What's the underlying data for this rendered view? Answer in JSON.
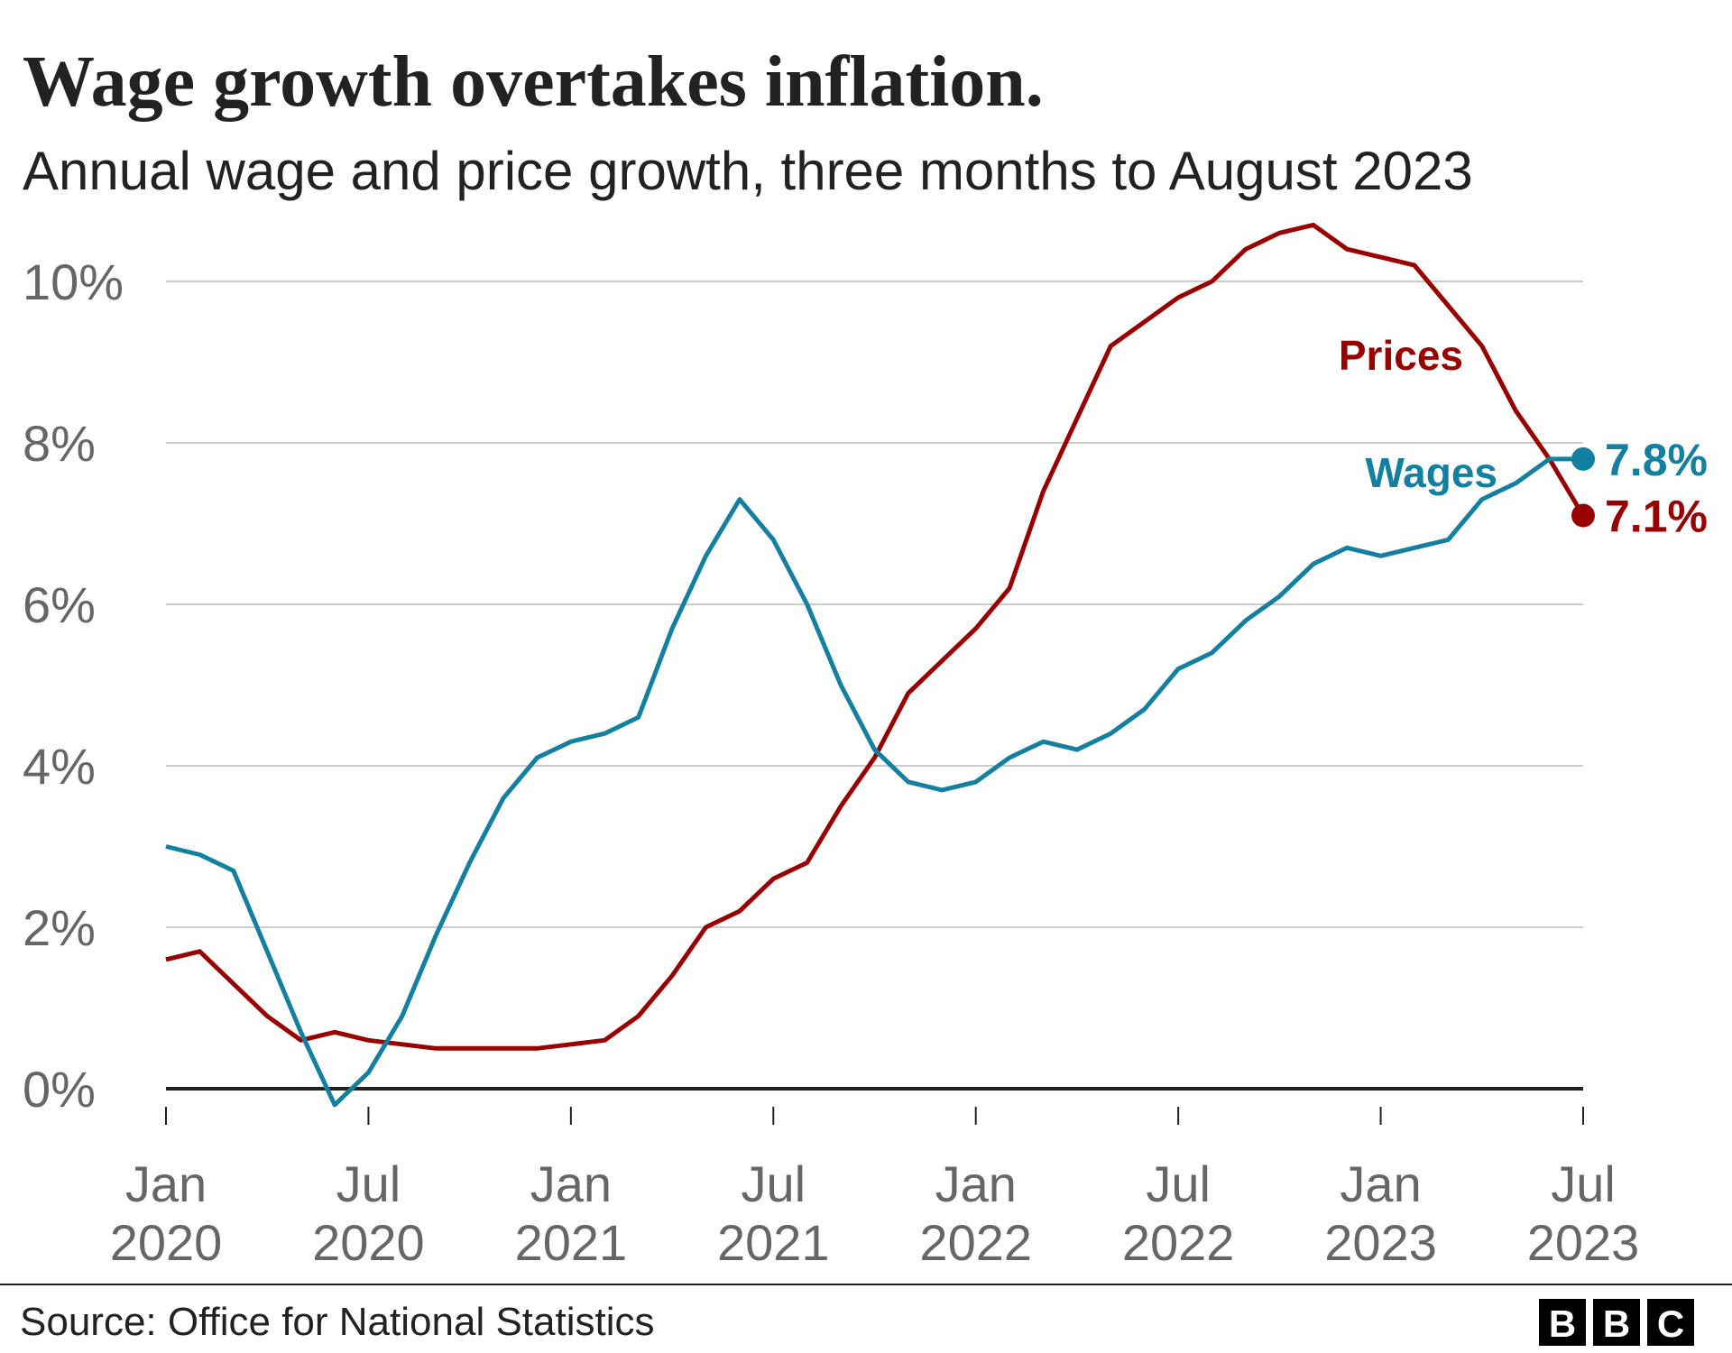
{
  "chart_data": {
    "type": "line",
    "title": "Wage growth overtakes inflation.",
    "subtitle": "Annual wage and price growth, three months to August 2023",
    "x": [
      "2020-01",
      "2020-02",
      "2020-03",
      "2020-04",
      "2020-05",
      "2020-06",
      "2020-07",
      "2020-08",
      "2020-09",
      "2020-10",
      "2020-11",
      "2020-12",
      "2021-01",
      "2021-02",
      "2021-03",
      "2021-04",
      "2021-05",
      "2021-06",
      "2021-07",
      "2021-08",
      "2021-09",
      "2021-10",
      "2021-11",
      "2021-12",
      "2022-01",
      "2022-02",
      "2022-03",
      "2022-04",
      "2022-05",
      "2022-06",
      "2022-07",
      "2022-08",
      "2022-09",
      "2022-10",
      "2022-11",
      "2022-12",
      "2023-01",
      "2023-02",
      "2023-03",
      "2023-04",
      "2023-05",
      "2023-06",
      "2023-07"
    ],
    "series": [
      {
        "name": "Prices",
        "color": "#990000",
        "values": [
          1.6,
          1.7,
          1.3,
          0.9,
          0.6,
          0.7,
          0.6,
          0.55,
          0.5,
          0.5,
          0.5,
          0.5,
          0.55,
          0.6,
          0.9,
          1.4,
          2.0,
          2.2,
          2.6,
          2.8,
          3.5,
          4.1,
          4.9,
          5.3,
          5.7,
          6.2,
          7.4,
          8.3,
          9.2,
          9.5,
          9.8,
          10.0,
          10.4,
          10.6,
          10.7,
          10.4,
          10.3,
          10.2,
          9.7,
          9.2,
          8.4,
          7.8,
          7.1
        ],
        "value_labels": [
          null,
          null,
          null,
          null,
          null,
          null,
          null,
          null,
          null,
          null,
          null,
          null,
          null,
          null,
          null,
          null,
          null,
          null,
          null,
          null,
          null,
          null,
          null,
          null,
          null,
          null,
          null,
          null,
          null,
          null,
          null,
          null,
          null,
          null,
          null,
          null,
          null,
          null,
          null,
          null,
          null,
          null,
          "7.1%"
        ]
      },
      {
        "name": "Wages",
        "color": "#1380A1",
        "values": [
          3.0,
          2.9,
          2.7,
          1.7,
          0.7,
          -0.2,
          0.2,
          0.9,
          1.9,
          2.8,
          3.6,
          4.1,
          4.3,
          4.4,
          4.6,
          5.7,
          6.6,
          7.3,
          6.8,
          6.0,
          5.0,
          4.2,
          3.8,
          3.7,
          3.8,
          4.1,
          4.3,
          4.2,
          4.4,
          4.7,
          5.2,
          5.4,
          5.8,
          6.1,
          6.5,
          6.7,
          6.6,
          6.7,
          6.8,
          7.3,
          7.5,
          7.8,
          7.8
        ],
        "value_labels": [
          null,
          null,
          null,
          null,
          null,
          null,
          null,
          null,
          null,
          null,
          null,
          null,
          null,
          null,
          null,
          null,
          null,
          null,
          null,
          null,
          null,
          null,
          null,
          null,
          null,
          null,
          null,
          null,
          null,
          null,
          null,
          null,
          null,
          null,
          null,
          null,
          null,
          null,
          null,
          null,
          null,
          null,
          "7.8%"
        ]
      }
    ],
    "ylim": [
      0,
      10
    ],
    "yticks": [
      {
        "value": 0,
        "label": "0%"
      },
      {
        "value": 2,
        "label": "2%"
      },
      {
        "value": 4,
        "label": "4%"
      },
      {
        "value": 6,
        "label": "6%"
      },
      {
        "value": 8,
        "label": "8%"
      },
      {
        "value": 10,
        "label": "10%"
      }
    ],
    "xticks": [
      {
        "value": "2020-01",
        "label": [
          "Jan",
          "2020"
        ]
      },
      {
        "value": "2020-07",
        "label": [
          "Jul",
          "2020"
        ]
      },
      {
        "value": "2021-01",
        "label": [
          "Jan",
          "2021"
        ]
      },
      {
        "value": "2021-07",
        "label": [
          "Jul",
          "2021"
        ]
      },
      {
        "value": "2022-01",
        "label": [
          "Jan",
          "2022"
        ]
      },
      {
        "value": "2022-07",
        "label": [
          "Jul",
          "2022"
        ]
      },
      {
        "value": "2023-01",
        "label": [
          "Jan",
          "2023"
        ]
      },
      {
        "value": "2023-07",
        "label": [
          "Jul",
          "2023"
        ]
      }
    ],
    "grid": true,
    "source": "Source: Office for National Statistics",
    "logo": [
      "B",
      "B",
      "C"
    ]
  }
}
